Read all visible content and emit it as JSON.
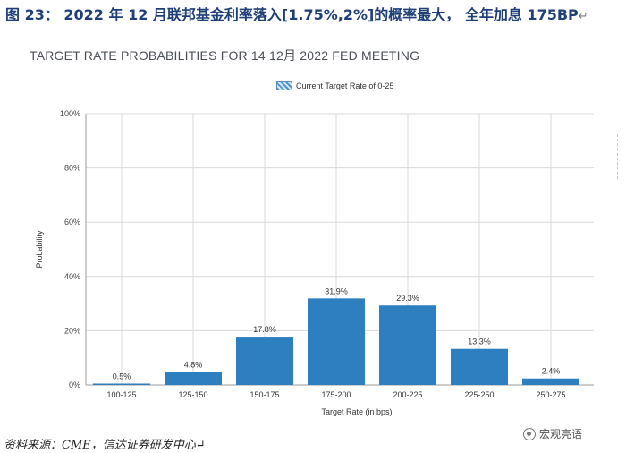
{
  "figure": {
    "caption": "图 23： 2022 年 12 月联邦基金利率落入[1.75%,2%]的概率最大， 全年加息 175BP",
    "return_mark": "↵"
  },
  "chart_data": {
    "type": "bar",
    "title": "TARGET RATE PROBABILITIES FOR 14 12月 2022 FED MEETING",
    "legend": [
      "Current Target Rate of 0-25"
    ],
    "legend_placement": "top",
    "categories": [
      "100-125",
      "125-150",
      "150-175",
      "175-200",
      "200-225",
      "225-250",
      "250-275"
    ],
    "series": [
      {
        "name": "Current Target Rate of 0-25",
        "values": [
          0.5,
          4.8,
          17.8,
          31.9,
          29.3,
          13.3,
          2.4
        ]
      }
    ],
    "data_labels": [
      "0.5%",
      "4.8%",
      "17.8%",
      "31.9%",
      "29.3%",
      "13.3%",
      "2.4%"
    ],
    "xlabel": "Target Rate (in bps)",
    "ylabel": "Probability",
    "ylim": [
      0,
      100
    ],
    "yticks": [
      0,
      20,
      40,
      60,
      80,
      100
    ],
    "ytick_labels": [
      "0%",
      "20%",
      "40%",
      "60%",
      "80%",
      "100%"
    ],
    "grid": true,
    "colors": {
      "bar": "#2e7fbf",
      "grid": "#d9d9d9",
      "axis": "#9a9a9a"
    }
  },
  "source": {
    "text": "资料来源：CME，信达证券研发中心↵"
  },
  "watermark": {
    "text": "宏观亮语",
    "icon": "wechat-icon"
  }
}
